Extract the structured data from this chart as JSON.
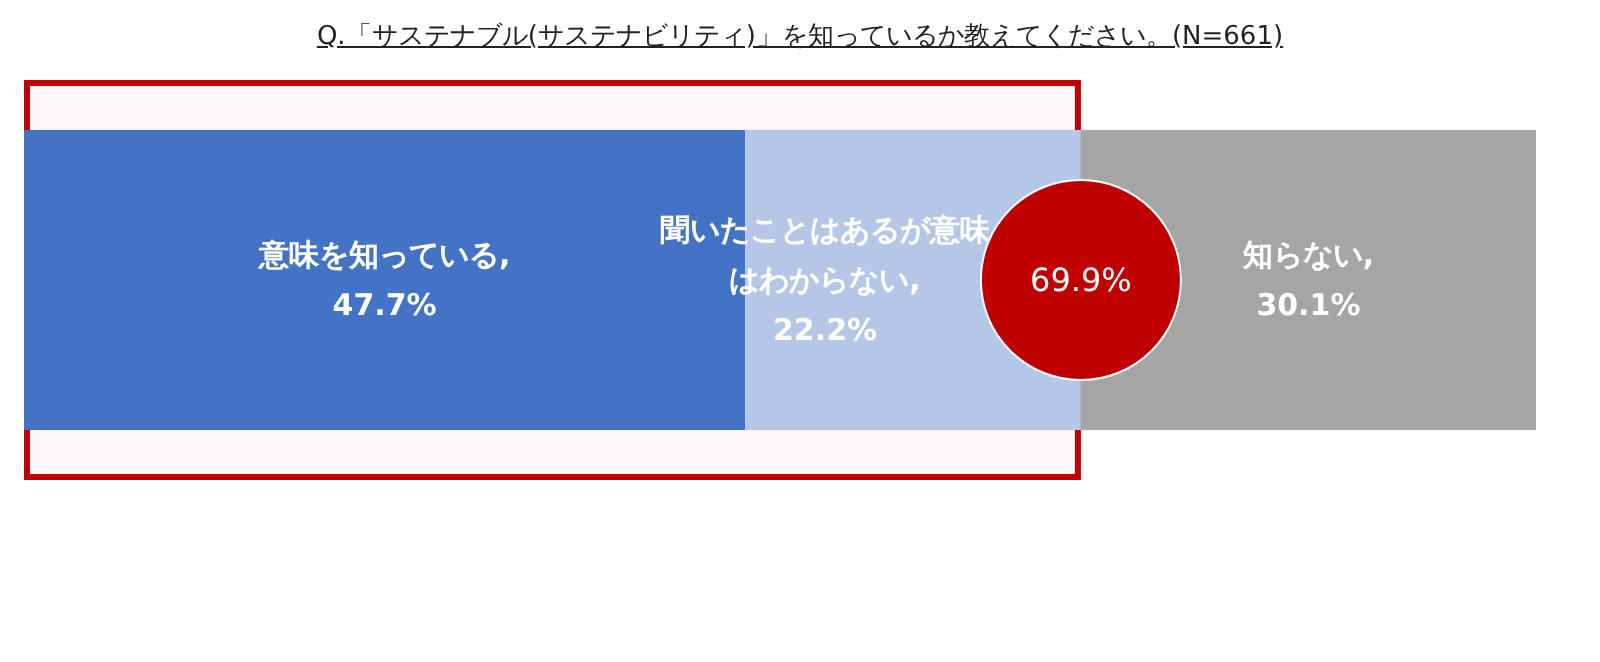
{
  "chart_data": {
    "type": "bar",
    "orientation": "horizontal",
    "stacked": true,
    "title": "Q.「サステナブル(サステナビリティ)」を知っているか教えてください。(N=661)",
    "categories": [
      null
    ],
    "xlim": [
      0,
      100
    ],
    "series": [
      {
        "color": "#4472c4",
        "values": [
          47.7
        ],
        "value_labels": [
          "意味を知っている, 47.7%"
        ]
      },
      {
        "color": "#b4c7e7",
        "values": [
          22.2
        ],
        "value_labels": [
          "聞いたことはあるが意味はわからない, 22.2%"
        ]
      },
      {
        "color": "#a5a5a5",
        "values": [
          30.1
        ],
        "value_labels": [
          "知らない, 30.1%"
        ]
      }
    ],
    "bands": [
      {
        "axis": "x",
        "from": 0,
        "to": 69.9,
        "color": "#c00000"
      }
    ],
    "annotations": [
      {
        "text": "69.9%",
        "x": 69.9
      }
    ]
  }
}
